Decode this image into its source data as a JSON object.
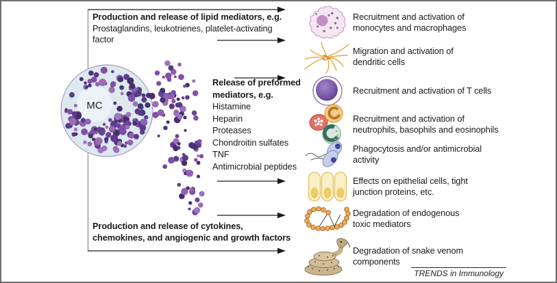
{
  "figure": {
    "mc_label": "MC",
    "footer": "TRENDS in Immunology"
  },
  "left_blocks": {
    "lipid": {
      "heading": "Production and release of lipid mediators, e.g.",
      "lines": [
        "Prostaglandins, leukotrienes, platelet-activating",
        "factor"
      ]
    },
    "preformed": {
      "heading_lines": [
        "Release of preformed",
        "mediators, e.g."
      ],
      "items": [
        "Histamine",
        "Heparin",
        "Proteases",
        "Chondroitin sulfates",
        "TNF",
        "Antimicrobial peptides"
      ]
    },
    "cytokines": {
      "lines": [
        "Production and release of cytokines,",
        "chemokines, and angiogenic and growth factors"
      ]
    }
  },
  "effects": [
    {
      "icon": "macrophage-icon",
      "lines": [
        "Recruitment and activation of",
        "monocytes and macrophages"
      ]
    },
    {
      "icon": "dendritic-cell-icon",
      "lines": [
        "Migration and activation of",
        "dendritic cells"
      ]
    },
    {
      "icon": "t-cell-icon",
      "lines": [
        "Recruitment and activation of T cells"
      ]
    },
    {
      "icon": "granulocytes-icon",
      "lines": [
        "Recruitment and activation of",
        "neutrophils, basophils and eosinophils"
      ]
    },
    {
      "icon": "bacteria-icon",
      "lines": [
        "Phagocytosis and/or antimicrobial",
        "activity"
      ]
    },
    {
      "icon": "epithelial-cells-icon",
      "lines": [
        "Effects on epithelial cells, tight",
        "junction proteins, etc."
      ]
    },
    {
      "icon": "peptide-chain-icon",
      "lines": [
        "Degradation of endogenous",
        "toxic mediators"
      ]
    },
    {
      "icon": "snake-icon",
      "lines": [
        "Degradation of snake venom",
        "components"
      ]
    }
  ],
  "style": {
    "cell_fill": "#dde9ee",
    "cell_stroke": "#a49ac2",
    "mc_blob_fill": "#ecf3f6",
    "arrow_color": "#1a1a1a",
    "bracket_color": "#8f8f8f",
    "granule_palette": [
      "#5d3a8e",
      "#7b4fa5",
      "#49306e",
      "#8f62b5",
      "#3e3a78",
      "#6b4596",
      "#9d74c0",
      "#553c85",
      "#a06cb0",
      "#462d6b",
      "#844fa8"
    ]
  }
}
